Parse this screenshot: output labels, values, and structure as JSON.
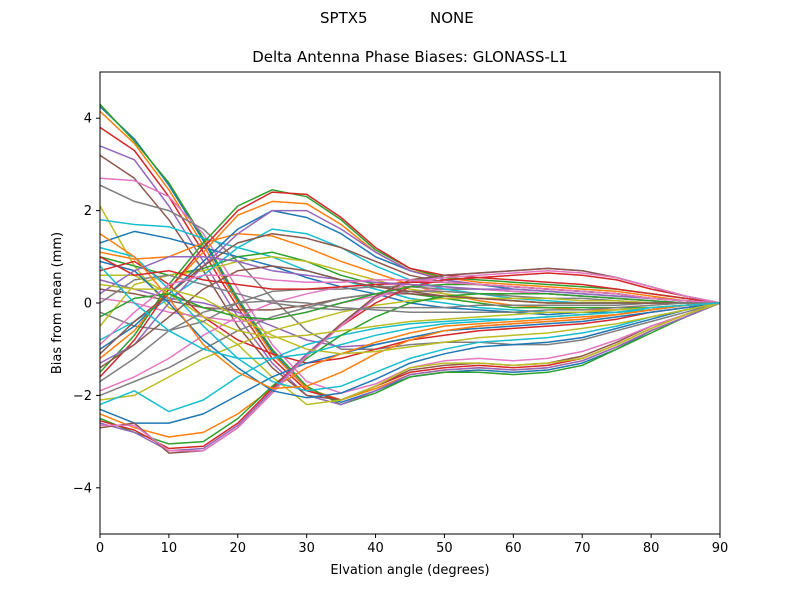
{
  "header": {
    "suptitle_left": "SPTX5",
    "suptitle_right": "NONE"
  },
  "chart_data": {
    "type": "line",
    "title": "Delta Antenna Phase Biases: GLONASS-L1",
    "xlabel": "Elvation angle (degrees)",
    "ylabel": "Bias from mean (mm)",
    "xlim": [
      0,
      90
    ],
    "ylim": [
      -5,
      5
    ],
    "xticks": [
      0,
      10,
      20,
      30,
      40,
      50,
      60,
      70,
      80,
      90
    ],
    "yticks": [
      -4,
      -2,
      0,
      2,
      4
    ],
    "ytick_labels": [
      "−4",
      "−2",
      "0",
      "2",
      "4"
    ],
    "grid": false,
    "legend": "none",
    "colors": [
      "#1f77b4",
      "#ff7f0e",
      "#2ca02c",
      "#d62728",
      "#9467bd",
      "#8c564b",
      "#e377c2",
      "#7f7f7f",
      "#bcbd22",
      "#17becf"
    ],
    "x": [
      0,
      5,
      10,
      15,
      20,
      25,
      30,
      35,
      40,
      45,
      50,
      55,
      60,
      65,
      70,
      75,
      80,
      85,
      90
    ],
    "series": [
      {
        "values": [
          4.25,
          3.55,
          2.55,
          1.35,
          0.05,
          -1.05,
          -1.85,
          -2.15,
          -1.9,
          -1.6,
          -1.5,
          -1.45,
          -1.5,
          -1.45,
          -1.3,
          -1.0,
          -0.6,
          -0.3,
          0
        ]
      },
      {
        "values": [
          4.15,
          3.45,
          2.45,
          1.25,
          0.0,
          -1.1,
          -1.85,
          -2.1,
          -1.85,
          -1.55,
          -1.45,
          -1.4,
          -1.45,
          -1.4,
          -1.25,
          -0.95,
          -0.6,
          -0.3,
          0
        ]
      },
      {
        "values": [
          4.3,
          3.5,
          2.6,
          1.4,
          0.1,
          -1.0,
          -1.8,
          -2.2,
          -1.95,
          -1.6,
          -1.5,
          -1.5,
          -1.55,
          -1.5,
          -1.35,
          -1.0,
          -0.65,
          -0.3,
          0
        ]
      },
      {
        "values": [
          3.8,
          3.3,
          2.3,
          1.1,
          -0.1,
          -1.2,
          -1.9,
          -2.1,
          -1.8,
          -1.5,
          -1.4,
          -1.35,
          -1.4,
          -1.35,
          -1.2,
          -0.9,
          -0.55,
          -0.25,
          0
        ]
      },
      {
        "values": [
          3.4,
          3.1,
          2.1,
          0.9,
          -0.3,
          -1.3,
          -2.0,
          -2.2,
          -1.9,
          -1.55,
          -1.45,
          -1.4,
          -1.45,
          -1.4,
          -1.25,
          -0.95,
          -0.6,
          -0.3,
          0
        ]
      },
      {
        "values": [
          3.2,
          2.7,
          1.8,
          0.7,
          -0.5,
          -1.4,
          -2.0,
          -2.1,
          -1.8,
          -1.45,
          -1.35,
          -1.3,
          -1.35,
          -1.3,
          -1.15,
          -0.85,
          -0.5,
          -0.25,
          0
        ]
      },
      {
        "values": [
          2.7,
          2.65,
          2.3,
          1.5,
          0.3,
          -0.9,
          -1.7,
          -1.95,
          -1.75,
          -1.4,
          -1.25,
          -1.2,
          -1.25,
          -1.2,
          -1.05,
          -0.8,
          -0.5,
          -0.25,
          0
        ]
      },
      {
        "values": [
          2.55,
          2.2,
          2.0,
          1.6,
          0.9,
          0.1,
          -0.6,
          -1.0,
          -1.0,
          -0.9,
          -0.85,
          -0.85,
          -0.9,
          -0.9,
          -0.8,
          -0.6,
          -0.4,
          -0.2,
          0
        ]
      },
      {
        "values": [
          2.1,
          0.8,
          -0.1,
          -0.4,
          -0.9,
          -1.6,
          -2.2,
          -2.1,
          -1.8,
          -1.4,
          -1.3,
          -1.3,
          -1.35,
          -1.3,
          -1.2,
          -0.9,
          -0.55,
          -0.25,
          0
        ]
      },
      {
        "values": [
          1.8,
          1.7,
          1.65,
          1.4,
          1.2,
          1.0,
          0.7,
          0.5,
          0.3,
          0.1,
          0.0,
          -0.1,
          -0.15,
          -0.2,
          -0.2,
          -0.2,
          -0.15,
          -0.05,
          0
        ]
      },
      {
        "values": [
          1.3,
          1.55,
          1.4,
          1.2,
          1.0,
          0.8,
          0.55,
          0.35,
          0.2,
          0.0,
          -0.1,
          -0.15,
          -0.2,
          -0.25,
          -0.2,
          -0.2,
          -0.15,
          -0.05,
          0
        ]
      },
      {
        "values": [
          1.1,
          0.95,
          1.0,
          1.3,
          1.5,
          1.45,
          1.2,
          0.9,
          0.65,
          0.4,
          0.2,
          0.05,
          -0.05,
          -0.1,
          -0.15,
          -0.15,
          -0.1,
          -0.05,
          0
        ]
      },
      {
        "values": [
          1.0,
          0.8,
          0.6,
          0.75,
          1.0,
          1.1,
          0.9,
          0.6,
          0.4,
          0.2,
          0.1,
          0.0,
          -0.1,
          -0.1,
          -0.1,
          -0.1,
          -0.1,
          -0.05,
          0
        ]
      },
      {
        "values": [
          0.7,
          0.9,
          0.4,
          -0.3,
          -0.8,
          -1.1,
          -1.3,
          -1.2,
          -1.0,
          -0.8,
          -0.7,
          -0.6,
          -0.55,
          -0.5,
          -0.45,
          -0.35,
          -0.2,
          -0.1,
          0
        ]
      },
      {
        "values": [
          0.5,
          0.3,
          0.1,
          0.0,
          -0.2,
          -0.5,
          -0.8,
          -0.95,
          -0.9,
          -0.75,
          -0.6,
          -0.5,
          -0.45,
          -0.4,
          -0.35,
          -0.25,
          -0.15,
          -0.05,
          0
        ]
      },
      {
        "values": [
          0.3,
          0.2,
          0.05,
          -0.1,
          -0.15,
          -0.15,
          -0.05,
          0.1,
          0.2,
          0.2,
          0.15,
          0.1,
          0.05,
          0.0,
          0.0,
          0.0,
          0.0,
          0.0,
          0
        ]
      },
      {
        "values": [
          0.1,
          0.0,
          -0.2,
          -0.3,
          -0.4,
          -0.35,
          -0.2,
          0.0,
          0.15,
          0.25,
          0.3,
          0.3,
          0.25,
          0.2,
          0.15,
          0.1,
          0.05,
          0.0,
          0
        ]
      },
      {
        "values": [
          -0.2,
          -0.5,
          -0.6,
          -0.4,
          0.0,
          0.25,
          0.3,
          0.3,
          0.35,
          0.35,
          0.3,
          0.3,
          0.25,
          0.2,
          0.15,
          0.1,
          0.05,
          0.0,
          0
        ]
      },
      {
        "values": [
          -0.5,
          0.4,
          0.6,
          0.7,
          0.9,
          1.0,
          0.9,
          0.7,
          0.5,
          0.3,
          0.2,
          0.1,
          0.05,
          0.0,
          0.0,
          0.0,
          0.0,
          0.0,
          0
        ]
      },
      {
        "values": [
          -0.8,
          -0.4,
          0.1,
          0.6,
          1.2,
          1.6,
          1.5,
          1.2,
          0.8,
          0.5,
          0.3,
          0.2,
          0.1,
          0.05,
          0.0,
          0.0,
          0.0,
          0.0,
          0
        ]
      },
      {
        "values": [
          -1.0,
          -0.5,
          0.2,
          0.9,
          1.6,
          2.0,
          1.85,
          1.5,
          1.0,
          0.7,
          0.5,
          0.4,
          0.3,
          0.25,
          0.2,
          0.15,
          0.1,
          0.05,
          0
        ]
      },
      {
        "values": [
          -1.2,
          -0.6,
          0.3,
          1.1,
          1.9,
          2.2,
          2.15,
          1.7,
          1.1,
          0.7,
          0.55,
          0.45,
          0.4,
          0.35,
          0.3,
          0.25,
          0.15,
          0.05,
          0
        ]
      },
      {
        "values": [
          -1.5,
          -0.7,
          0.4,
          1.3,
          2.1,
          2.45,
          2.3,
          1.8,
          1.15,
          0.75,
          0.55,
          0.5,
          0.45,
          0.4,
          0.35,
          0.3,
          0.2,
          0.1,
          0
        ]
      },
      {
        "values": [
          -1.6,
          -0.8,
          0.3,
          1.2,
          2.0,
          2.4,
          2.35,
          1.85,
          1.2,
          0.75,
          0.6,
          0.55,
          0.5,
          0.45,
          0.4,
          0.3,
          0.2,
          0.1,
          0
        ]
      },
      {
        "values": [
          -1.3,
          -0.9,
          0.0,
          0.8,
          1.5,
          2.0,
          2.0,
          1.6,
          1.1,
          0.7,
          0.5,
          0.4,
          0.35,
          0.3,
          0.25,
          0.2,
          0.1,
          0.05,
          0
        ]
      },
      {
        "values": [
          -1.1,
          -0.4,
          0.2,
          0.8,
          1.3,
          1.5,
          1.4,
          1.2,
          0.9,
          0.6,
          0.45,
          0.4,
          0.35,
          0.3,
          0.25,
          0.2,
          0.1,
          0.05,
          0
        ]
      },
      {
        "values": [
          -1.9,
          -1.6,
          -1.2,
          -0.7,
          -0.3,
          0.0,
          0.2,
          0.35,
          0.4,
          0.4,
          0.35,
          0.3,
          0.25,
          0.2,
          0.15,
          0.1,
          0.05,
          0.0,
          0
        ]
      },
      {
        "values": [
          -2.0,
          -1.7,
          -1.4,
          -1.0,
          -0.6,
          -0.3,
          -0.1,
          0.1,
          0.2,
          0.25,
          0.25,
          0.2,
          0.15,
          0.1,
          0.1,
          0.05,
          0.0,
          0.0,
          0
        ]
      },
      {
        "values": [
          -2.1,
          -2.0,
          -1.6,
          -1.2,
          -0.9,
          -0.6,
          -0.4,
          -0.2,
          -0.05,
          0.05,
          0.1,
          0.1,
          0.1,
          0.1,
          0.05,
          0.05,
          0.0,
          0.0,
          0
        ]
      },
      {
        "values": [
          -2.2,
          -1.9,
          -2.35,
          -2.1,
          -1.6,
          -1.2,
          -0.9,
          -0.7,
          -0.55,
          -0.45,
          -0.4,
          -0.35,
          -0.35,
          -0.3,
          -0.25,
          -0.2,
          -0.15,
          -0.05,
          0
        ]
      },
      {
        "values": [
          -2.3,
          -2.6,
          -2.6,
          -2.4,
          -2.0,
          -1.6,
          -1.3,
          -1.1,
          -0.9,
          -0.75,
          -0.6,
          -0.55,
          -0.5,
          -0.45,
          -0.4,
          -0.3,
          -0.2,
          -0.1,
          0
        ]
      },
      {
        "values": [
          -2.4,
          -2.7,
          -2.9,
          -2.8,
          -2.4,
          -1.85,
          -1.4,
          -1.1,
          -0.85,
          -0.65,
          -0.5,
          -0.45,
          -0.4,
          -0.35,
          -0.3,
          -0.25,
          -0.15,
          -0.05,
          0
        ]
      },
      {
        "values": [
          -2.5,
          -2.8,
          -3.05,
          -3.0,
          -2.5,
          -1.8,
          -1.2,
          -0.7,
          -0.3,
          0.0,
          0.15,
          0.2,
          0.2,
          0.2,
          0.15,
          0.1,
          0.05,
          0.0,
          0
        ]
      },
      {
        "values": [
          -2.55,
          -2.75,
          -3.15,
          -3.1,
          -2.6,
          -1.85,
          -1.1,
          -0.5,
          0.0,
          0.35,
          0.5,
          0.55,
          0.6,
          0.65,
          0.6,
          0.5,
          0.3,
          0.15,
          0
        ]
      },
      {
        "values": [
          -2.6,
          -2.8,
          -3.2,
          -3.15,
          -2.65,
          -1.9,
          -1.1,
          -0.45,
          0.1,
          0.45,
          0.6,
          0.65,
          0.7,
          0.75,
          0.7,
          0.55,
          0.35,
          0.15,
          0
        ]
      },
      {
        "values": [
          -2.7,
          -2.6,
          -3.25,
          -3.2,
          -2.7,
          -1.95,
          -1.15,
          -0.45,
          0.15,
          0.5,
          0.6,
          0.65,
          0.7,
          0.75,
          0.7,
          0.55,
          0.35,
          0.15,
          0
        ]
      },
      {
        "values": [
          -2.65,
          -2.65,
          -3.2,
          -3.2,
          -2.7,
          -1.95,
          -1.15,
          -0.5,
          0.1,
          0.45,
          0.55,
          0.6,
          0.65,
          0.7,
          0.65,
          0.55,
          0.35,
          0.15,
          0
        ]
      },
      {
        "values": [
          0.0,
          0.5,
          0.6,
          0.4,
          0.2,
          0.0,
          -0.1,
          -0.15,
          -0.1,
          -0.1,
          -0.1,
          -0.05,
          -0.05,
          -0.05,
          -0.05,
          -0.05,
          0.0,
          0.0,
          0
        ]
      },
      {
        "values": [
          0.6,
          0.6,
          0.2,
          -0.3,
          -0.6,
          -0.75,
          -0.7,
          -0.6,
          -0.5,
          -0.4,
          -0.35,
          -0.3,
          -0.25,
          -0.2,
          -0.2,
          -0.15,
          -0.1,
          -0.05,
          0
        ]
      },
      {
        "values": [
          1.2,
          1.0,
          0.3,
          -0.5,
          -1.2,
          -1.7,
          -1.9,
          -1.8,
          -1.5,
          -1.2,
          -1.0,
          -0.85,
          -0.8,
          -0.75,
          -0.65,
          -0.5,
          -0.3,
          -0.15,
          0
        ]
      },
      {
        "values": [
          0.9,
          0.7,
          0.0,
          -0.8,
          -1.4,
          -1.9,
          -2.05,
          -1.95,
          -1.65,
          -1.3,
          -1.1,
          -0.95,
          -0.9,
          -0.85,
          -0.75,
          -0.55,
          -0.35,
          -0.15,
          0
        ]
      },
      {
        "values": [
          1.5,
          1.0,
          0.1,
          -0.9,
          -1.5,
          -1.85,
          -1.8,
          -1.5,
          -1.1,
          -0.8,
          -0.6,
          -0.5,
          -0.45,
          -0.4,
          -0.35,
          -0.25,
          -0.15,
          -0.05,
          0
        ]
      },
      {
        "values": [
          -0.3,
          0.1,
          0.2,
          -0.1,
          -0.3,
          -0.35,
          -0.2,
          0.0,
          0.2,
          0.35,
          0.4,
          0.4,
          0.35,
          0.3,
          0.25,
          0.2,
          0.1,
          0.05,
          0
        ]
      },
      {
        "values": [
          1.0,
          0.6,
          0.7,
          0.5,
          0.4,
          0.3,
          0.3,
          0.35,
          0.4,
          0.45,
          0.45,
          0.4,
          0.35,
          0.3,
          0.25,
          0.2,
          0.1,
          0.05,
          0
        ]
      },
      {
        "values": [
          0.2,
          0.7,
          1.0,
          1.0,
          0.9,
          0.7,
          0.6,
          0.5,
          0.45,
          0.4,
          0.35,
          0.3,
          0.3,
          0.25,
          0.2,
          0.15,
          0.1,
          0.05,
          0
        ]
      },
      {
        "values": [
          -1.4,
          -0.9,
          -0.3,
          0.3,
          0.7,
          0.8,
          0.7,
          0.5,
          0.35,
          0.25,
          0.15,
          0.1,
          0.05,
          0.0,
          0.0,
          0.0,
          0.0,
          0.0,
          0
        ]
      },
      {
        "values": [
          -0.9,
          -0.2,
          0.4,
          0.6,
          0.6,
          0.5,
          0.45,
          0.45,
          0.5,
          0.5,
          0.45,
          0.4,
          0.35,
          0.3,
          0.25,
          0.2,
          0.1,
          0.05,
          0
        ]
      },
      {
        "values": [
          -1.7,
          -1.2,
          -0.6,
          -0.2,
          0.0,
          0.05,
          0.0,
          -0.1,
          -0.15,
          -0.2,
          -0.2,
          -0.2,
          -0.2,
          -0.15,
          -0.15,
          -0.1,
          -0.05,
          0.0,
          0
        ]
      },
      {
        "values": [
          0.4,
          0.3,
          0.3,
          0.1,
          -0.3,
          -0.7,
          -1.0,
          -1.1,
          -1.05,
          -0.95,
          -0.85,
          -0.75,
          -0.7,
          -0.65,
          -0.55,
          -0.45,
          -0.3,
          -0.15,
          0
        ]
      },
      {
        "values": [
          0.8,
          0.0,
          -0.6,
          -1.0,
          -1.2,
          -1.2,
          -1.1,
          -0.9,
          -0.7,
          -0.55,
          -0.45,
          -0.4,
          -0.35,
          -0.3,
          -0.25,
          -0.2,
          -0.1,
          -0.05,
          0
        ]
      }
    ]
  }
}
